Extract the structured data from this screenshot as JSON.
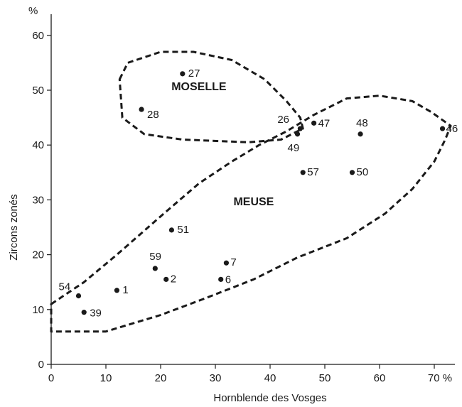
{
  "chart_data": {
    "type": "scatter",
    "xlabel": "Hornblende des Vosges",
    "ylabel": "Zircons zonés",
    "xlim": [
      0,
      72
    ],
    "ylim": [
      0,
      62
    ],
    "x_ticks": [
      {
        "value": 0,
        "label": "0"
      },
      {
        "value": 10,
        "label": "10"
      },
      {
        "value": 20,
        "label": "20"
      },
      {
        "value": 30,
        "label": "30"
      },
      {
        "value": 40,
        "label": "40"
      },
      {
        "value": 50,
        "label": "50"
      },
      {
        "value": 60,
        "label": "60"
      },
      {
        "value": 70,
        "label": "70 %"
      }
    ],
    "y_ticks": [
      {
        "value": 0,
        "label": "0"
      },
      {
        "value": 10,
        "label": "10"
      },
      {
        "value": 20,
        "label": "20"
      },
      {
        "value": 30,
        "label": "30"
      },
      {
        "value": 40,
        "label": "40"
      },
      {
        "value": 50,
        "label": "50"
      },
      {
        "value": 60,
        "label": "60"
      }
    ],
    "y_unit": "%",
    "grid": false,
    "points": [
      {
        "label": "27",
        "x": 24,
        "y": 53
      },
      {
        "label": "28",
        "x": 16.5,
        "y": 46.5
      },
      {
        "label": "26",
        "x": 45.5,
        "y": 43
      },
      {
        "label": "49",
        "x": 45,
        "y": 42
      },
      {
        "label": "47",
        "x": 48,
        "y": 44
      },
      {
        "label": "48",
        "x": 56.5,
        "y": 42
      },
      {
        "label": "46",
        "x": 71.5,
        "y": 43
      },
      {
        "label": "57",
        "x": 46,
        "y": 35
      },
      {
        "label": "50",
        "x": 55,
        "y": 35
      },
      {
        "label": "51",
        "x": 22,
        "y": 24.5
      },
      {
        "label": "59",
        "x": 19,
        "y": 17.5
      },
      {
        "label": "2",
        "x": 21,
        "y": 15.5
      },
      {
        "label": "7",
        "x": 32,
        "y": 18.5
      },
      {
        "label": "6",
        "x": 31,
        "y": 15.5
      },
      {
        "label": "54",
        "x": 5,
        "y": 12.5
      },
      {
        "label": "1",
        "x": 12,
        "y": 13.5
      },
      {
        "label": "39",
        "x": 6,
        "y": 9.5
      }
    ],
    "groups": [
      {
        "name": "MOSELLE",
        "label_at": [
          27,
          50
        ],
        "outline": [
          [
            12.5,
            52
          ],
          [
            14,
            55
          ],
          [
            20,
            57
          ],
          [
            26,
            57
          ],
          [
            33,
            55.5
          ],
          [
            39,
            52
          ],
          [
            43,
            48
          ],
          [
            45.5,
            45
          ],
          [
            46,
            43
          ],
          [
            42,
            41
          ],
          [
            36,
            40.5
          ],
          [
            24,
            41
          ],
          [
            17,
            42
          ],
          [
            13,
            45
          ]
        ]
      },
      {
        "name": "MEUSE",
        "label_at": [
          37,
          29
        ],
        "outline": [
          [
            0,
            11
          ],
          [
            6,
            15
          ],
          [
            12,
            20
          ],
          [
            20,
            27
          ],
          [
            27,
            33
          ],
          [
            33,
            37
          ],
          [
            38,
            40
          ],
          [
            43,
            42.5
          ],
          [
            48,
            45.5
          ],
          [
            54,
            48.5
          ],
          [
            60,
            49
          ],
          [
            66,
            48
          ],
          [
            69.5,
            46
          ],
          [
            73,
            43.5
          ],
          [
            72,
            41
          ],
          [
            70,
            37
          ],
          [
            66,
            32
          ],
          [
            61,
            27.5
          ],
          [
            54,
            23
          ],
          [
            45,
            19.5
          ],
          [
            37,
            15.5
          ],
          [
            28,
            12
          ],
          [
            20,
            9
          ],
          [
            15,
            7.5
          ],
          [
            10,
            6
          ],
          [
            0,
            6
          ]
        ]
      }
    ]
  }
}
